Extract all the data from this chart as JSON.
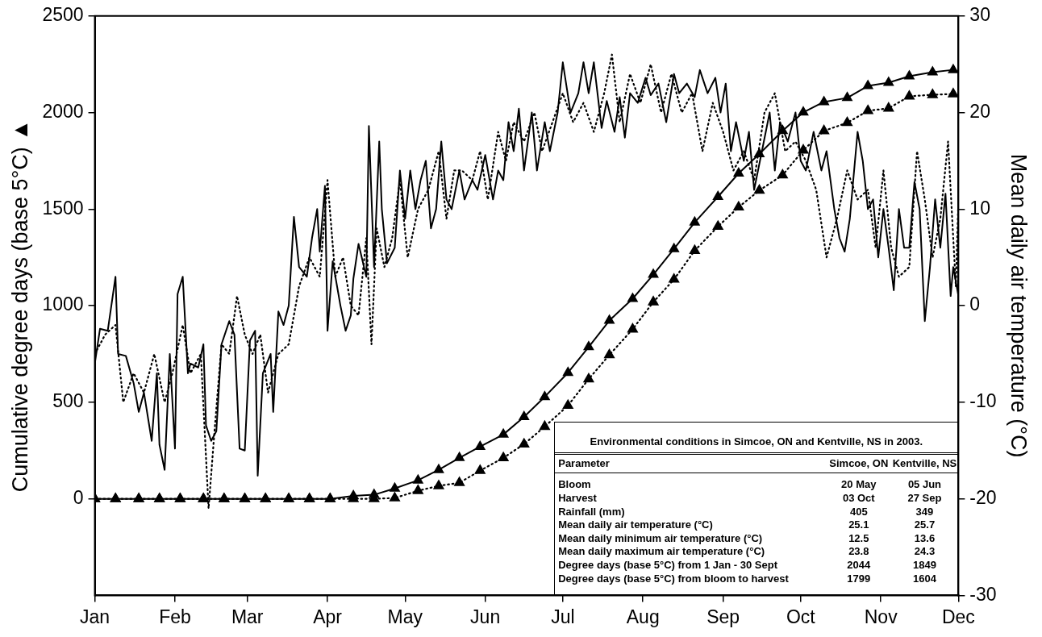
{
  "chart_data": {
    "type": "line",
    "ylabel": "Cumulative degree days (base 5°C) ▲",
    "y2label": "Mean daily air temperature (°C)",
    "xlim": [
      "--01-01",
      "--12-01"
    ],
    "xticks": [
      {
        "value": "--01-01",
        "label": "Jan"
      },
      {
        "value": "--02-01",
        "label": "Feb"
      },
      {
        "value": "--03-01",
        "label": "Mar"
      },
      {
        "value": "--04-01",
        "label": "Apr"
      },
      {
        "value": "--05-01",
        "label": "May"
      },
      {
        "value": "--06-01",
        "label": "Jun"
      },
      {
        "value": "--07-01",
        "label": "Jul"
      },
      {
        "value": "--08-01",
        "label": "Aug"
      },
      {
        "value": "--09-01",
        "label": "Sep"
      },
      {
        "value": "--10-01",
        "label": "Oct"
      },
      {
        "value": "--11-01",
        "label": "Nov"
      },
      {
        "value": "--12-01",
        "label": "Dec"
      }
    ],
    "ylim": [
      -500,
      2500
    ],
    "yticks": [
      0,
      500,
      1000,
      1500,
      2000,
      2500
    ],
    "y2lim": [
      -30,
      30
    ],
    "y2ticks": [
      -30,
      -20,
      -10,
      0,
      10,
      20,
      30
    ],
    "grid": false,
    "legend": false,
    "series": [
      {
        "color": "#000000",
        "marker": "none",
        "line_style": "solid",
        "axis": "y2",
        "x": [
          "--01-01",
          "--01-03",
          "--01-06",
          "--01-09",
          "--01-10",
          "--01-13",
          "--01-16",
          "--01-18",
          "--01-20",
          "--01-23",
          "--01-25",
          "--01-26",
          "--01-28",
          "--01-30",
          "--02-01",
          "--02-02",
          "--02-04",
          "--02-06",
          "--02-07",
          "--02-10",
          "--02-12",
          "--02-13",
          "--02-15",
          "--02-17",
          "--02-19",
          "--02-22",
          "--02-24",
          "--02-26",
          "--02-28",
          "--03-02",
          "--03-04",
          "--03-05",
          "--03-07",
          "--03-10",
          "--03-11",
          "--03-13",
          "--03-15",
          "--03-17",
          "--03-19",
          "--03-21",
          "--03-24",
          "--03-26",
          "--03-28",
          "--03-29",
          "--03-31",
          "--04-01",
          "--04-03",
          "--04-06",
          "--04-08",
          "--04-10",
          "--04-11",
          "--04-13",
          "--04-16",
          "--04-17",
          "--04-19",
          "--04-21",
          "--04-22",
          "--04-24",
          "--04-27",
          "--04-29",
          "--05-01",
          "--05-03",
          "--05-05",
          "--05-07",
          "--05-09",
          "--05-11",
          "--05-13",
          "--05-15",
          "--05-17",
          "--05-19",
          "--05-22",
          "--05-24",
          "--05-27",
          "--05-29",
          "--06-01",
          "--06-04",
          "--06-06",
          "--06-08",
          "--06-10",
          "--06-12",
          "--06-14",
          "--06-16",
          "--06-19",
          "--06-21",
          "--06-24",
          "--06-26",
          "--06-29",
          "--07-01",
          "--07-04",
          "--07-07",
          "--07-09",
          "--07-11",
          "--07-13",
          "--07-16",
          "--07-18",
          "--07-21",
          "--07-23",
          "--07-25",
          "--07-27",
          "--07-30",
          "--08-02",
          "--08-04",
          "--08-07",
          "--08-10",
          "--08-13",
          "--08-15",
          "--08-18",
          "--08-21",
          "--08-23",
          "--08-26",
          "--08-29",
          "--08-31",
          "--09-02",
          "--09-04",
          "--09-06",
          "--09-09",
          "--09-11",
          "--09-13",
          "--09-16",
          "--09-19",
          "--09-21",
          "--09-23",
          "--09-26",
          "--09-29",
          "--10-01",
          "--10-03",
          "--10-06",
          "--10-09",
          "--10-11",
          "--10-14",
          "--10-16",
          "--10-18",
          "--10-20",
          "--10-23",
          "--10-25",
          "--10-27",
          "--10-29",
          "--10-31",
          "--11-02",
          "--11-04",
          "--11-06",
          "--11-08",
          "--11-10",
          "--11-12",
          "--11-14",
          "--11-16",
          "--11-18",
          "--11-20",
          "--11-22",
          "--11-24",
          "--11-26",
          "--11-28",
          "--11-29",
          "--12-01"
        ],
        "values": [
          -6,
          -2.4,
          -2.6,
          3,
          -5,
          -5.2,
          -8,
          -11,
          -9,
          -14,
          -7,
          -14.4,
          -17,
          -5,
          -14.8,
          1.2,
          3,
          -7,
          -6,
          -6.4,
          -4,
          -12.4,
          -14,
          -13,
          -4,
          -1.6,
          -3,
          -14.8,
          -15,
          -3.6,
          -2.6,
          -17.6,
          -7,
          -5,
          -11,
          -0.6,
          -2,
          0,
          9.2,
          4,
          3,
          7,
          10,
          5.6,
          12.4,
          -2.6,
          4.6,
          0,
          -2.6,
          -1,
          2.8,
          6.4,
          3,
          18.6,
          4,
          17,
          10,
          4.4,
          6,
          14,
          9,
          14,
          10,
          13,
          15,
          8,
          10,
          17,
          11,
          10,
          14,
          11,
          13,
          12,
          15.6,
          11,
          14,
          13,
          19,
          16,
          20.4,
          14,
          20,
          14,
          19,
          16,
          20,
          25.2,
          20,
          22,
          25.2,
          22,
          25.2,
          18.4,
          21.2,
          18,
          21.6,
          17.4,
          22,
          21,
          23.6,
          21.8,
          23,
          19,
          24,
          22,
          23,
          21.6,
          24.4,
          22,
          23.6,
          20,
          23,
          16,
          19,
          15,
          18,
          12,
          16,
          20,
          14,
          19,
          17,
          20,
          15,
          14,
          18,
          14,
          16,
          10,
          7,
          5.6,
          9,
          18,
          15,
          10,
          11,
          5,
          10,
          6,
          1.6,
          10,
          6,
          6,
          12.8,
          10,
          -1.6,
          4,
          11,
          6,
          11.6,
          1,
          4,
          1
        ]
      },
      {
        "color": "#000000",
        "marker": "none",
        "line_style": "dotted",
        "axis": "y2",
        "x": [
          "--01-01",
          "--01-05",
          "--01-09",
          "--01-12",
          "--01-16",
          "--01-20",
          "--01-24",
          "--01-28",
          "--01-31",
          "--02-04",
          "--02-07",
          "--02-11",
          "--02-14",
          "--02-16",
          "--02-19",
          "--02-22",
          "--02-25",
          "--02-28",
          "--03-03",
          "--03-06",
          "--03-09",
          "--03-13",
          "--03-17",
          "--03-21",
          "--03-25",
          "--03-29",
          "--04-01",
          "--04-04",
          "--04-07",
          "--04-10",
          "--04-13",
          "--04-16",
          "--04-18",
          "--04-20",
          "--04-23",
          "--04-26",
          "--04-29",
          "--05-02",
          "--05-06",
          "--05-10",
          "--05-14",
          "--05-17",
          "--05-20",
          "--05-23",
          "--05-27",
          "--05-30",
          "--06-02",
          "--06-06",
          "--06-09",
          "--06-12",
          "--06-16",
          "--06-20",
          "--06-23",
          "--06-27",
          "--07-01",
          "--07-05",
          "--07-09",
          "--07-13",
          "--07-17",
          "--07-20",
          "--07-23",
          "--07-27",
          "--07-31",
          "--08-04",
          "--08-08",
          "--08-12",
          "--08-16",
          "--08-20",
          "--08-24",
          "--08-28",
          "--09-01",
          "--09-05",
          "--09-09",
          "--09-13",
          "--09-17",
          "--09-21",
          "--09-25",
          "--09-29",
          "--10-03",
          "--10-07",
          "--10-11",
          "--10-15",
          "--10-19",
          "--10-23",
          "--10-27",
          "--10-30",
          "--11-02",
          "--11-05",
          "--11-08",
          "--11-12",
          "--11-15",
          "--11-18",
          "--11-21",
          "--11-24",
          "--11-27",
          "--11-30",
          "--12-01"
        ],
        "values": [
          -5,
          -3,
          -2,
          -10,
          -7,
          -9,
          -5,
          -10,
          -7,
          -2,
          -7,
          -5,
          -21,
          -14,
          -4,
          -5,
          1,
          -3,
          -5,
          -3,
          -9,
          -5,
          -4,
          2,
          5,
          3,
          13,
          3,
          5,
          0,
          -1,
          7,
          -4,
          8,
          4,
          7,
          13,
          5,
          10,
          12,
          16,
          9,
          14,
          14,
          13,
          16,
          11,
          18,
          15,
          19,
          17,
          20,
          16,
          19,
          22,
          19,
          21,
          18,
          22,
          26,
          19,
          24,
          21,
          25,
          20,
          24,
          20,
          22,
          16,
          21,
          18,
          14,
          16,
          13,
          20,
          22,
          16,
          17,
          15,
          12,
          5,
          9,
          14,
          11,
          12,
          6,
          14,
          6,
          3,
          4,
          16,
          11,
          5,
          9,
          17,
          2,
          11
        ]
      },
      {
        "color": "#000000",
        "marker": "triangle",
        "line_style": "solid",
        "axis": "y",
        "x": [
          "--01-01",
          "--01-09",
          "--01-18",
          "--01-26",
          "--02-03",
          "--02-12",
          "--02-20",
          "--02-28",
          "--03-08",
          "--03-17",
          "--03-25",
          "--04-02",
          "--04-11",
          "--04-19",
          "--04-27",
          "--05-06",
          "--05-14",
          "--05-22",
          "--05-30",
          "--06-08",
          "--06-16",
          "--06-24",
          "--07-03",
          "--07-11",
          "--07-19",
          "--07-28",
          "--08-05",
          "--08-13",
          "--08-21",
          "--08-30",
          "--09-07",
          "--09-15",
          "--09-24",
          "--10-02",
          "--10-10",
          "--10-19",
          "--10-27",
          "--11-04",
          "--11-12",
          "--11-21",
          "--11-29"
        ],
        "values": [
          0,
          0,
          0,
          0,
          0,
          0,
          0,
          0,
          0,
          0,
          0,
          0,
          15,
          21,
          54,
          96,
          150,
          212,
          270,
          333,
          424,
          528,
          653,
          786,
          923,
          1036,
          1161,
          1294,
          1431,
          1564,
          1685,
          1785,
          1905,
          2001,
          2055,
          2076,
          2138,
          2155,
          2188,
          2209,
          2221
        ]
      },
      {
        "color": "#000000",
        "marker": "triangle",
        "line_style": "dotted",
        "axis": "y",
        "x": [
          "--01-01",
          "--01-09",
          "--01-18",
          "--01-26",
          "--02-03",
          "--02-12",
          "--02-20",
          "--02-28",
          "--03-08",
          "--03-17",
          "--03-25",
          "--04-02",
          "--04-11",
          "--04-19",
          "--04-27",
          "--05-06",
          "--05-14",
          "--05-22",
          "--05-30",
          "--06-08",
          "--06-16",
          "--06-24",
          "--07-03",
          "--07-11",
          "--07-19",
          "--07-28",
          "--08-05",
          "--08-13",
          "--08-21",
          "--08-30",
          "--09-07",
          "--09-15",
          "--09-24",
          "--10-02",
          "--10-10",
          "--10-19",
          "--10-27",
          "--11-04",
          "--11-12",
          "--11-21",
          "--11-29"
        ],
        "values": [
          0,
          0,
          0,
          0,
          0,
          0,
          0,
          0,
          0,
          0,
          0,
          0,
          0,
          0,
          4,
          42,
          67,
          83,
          146,
          212,
          283,
          374,
          483,
          620,
          745,
          878,
          1019,
          1136,
          1285,
          1410,
          1510,
          1597,
          1676,
          1805,
          1905,
          1947,
          2009,
          2022,
          2084,
          2092,
          2096
        ]
      }
    ],
    "annotations": [
      "Environmental conditions in Simcoe, ON and Kentville, NS in 2003.",
      "Parameter",
      "Simcoe, ON",
      "Kentville, NS",
      "Bloom",
      "20 May",
      "05 Jun",
      "Harvest",
      "03 Oct",
      "27 Sep",
      "Rainfall (mm)",
      "405",
      "349",
      "Mean daily air temperature (°C)",
      "25.1",
      "25.7",
      "Mean daily minimum air temperature (°C)",
      "12.5",
      "13.6",
      "Mean daily maximum air temperature (°C)",
      "23.8",
      "24.3",
      "Degree days (base 5°C) from 1 Jan - 30 Sept",
      "2044",
      "1849",
      "Degree days (base 5°C) from bloom to harvest",
      "1799",
      "1604"
    ]
  }
}
